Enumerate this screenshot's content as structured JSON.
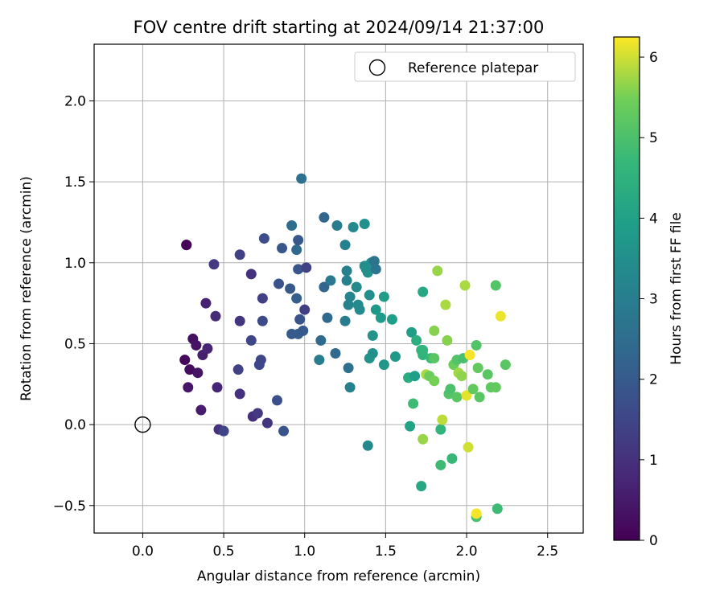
{
  "chart_data": {
    "type": "scatter",
    "title": "FOV centre drift starting at 2024/09/14 21:37:00",
    "xlabel": "Angular distance from reference (arcmin)",
    "ylabel": "Rotation from reference (arcmin)",
    "xlim": [
      -0.3,
      2.72
    ],
    "ylim": [
      -0.67,
      2.35
    ],
    "xticks": [
      0.0,
      0.5,
      1.0,
      1.5,
      2.0,
      2.5
    ],
    "yticks": [
      -0.5,
      0.0,
      0.5,
      1.0,
      1.5,
      2.0
    ],
    "xtick_labels": [
      "0.0",
      "0.5",
      "1.0",
      "1.5",
      "2.0",
      "2.5"
    ],
    "ytick_labels": [
      "−0.5",
      "0.0",
      "0.5",
      "1.0",
      "1.5",
      "2.0"
    ],
    "grid": true,
    "legend": {
      "position": "top-right",
      "entries": [
        "Reference platepar"
      ]
    },
    "reference_point": {
      "x": 0.0,
      "y": 0.0,
      "marker": "open-circle"
    },
    "colorbar": {
      "label": "Hours from first FF file",
      "min": 0,
      "max": 6.25,
      "ticks": [
        0,
        1,
        2,
        3,
        4,
        5,
        6
      ],
      "tick_labels": [
        "0",
        "1",
        "2",
        "3",
        "4",
        "5",
        "6"
      ],
      "colormap": "viridis"
    },
    "points": [
      {
        "x": 0.27,
        "y": 1.11,
        "c": 0.02
      },
      {
        "x": 0.27,
        "y": 1.11,
        "c": 0.05
      },
      {
        "x": 0.26,
        "y": 0.4,
        "c": 0.1
      },
      {
        "x": 0.29,
        "y": 0.34,
        "c": 0.2
      },
      {
        "x": 0.31,
        "y": 0.53,
        "c": 0.3
      },
      {
        "x": 0.33,
        "y": 0.49,
        "c": 0.35
      },
      {
        "x": 0.34,
        "y": 0.32,
        "c": 0.4
      },
      {
        "x": 0.28,
        "y": 0.23,
        "c": 0.45
      },
      {
        "x": 0.36,
        "y": 0.09,
        "c": 0.55
      },
      {
        "x": 0.37,
        "y": 0.43,
        "c": 0.6
      },
      {
        "x": 0.39,
        "y": 0.75,
        "c": 0.65
      },
      {
        "x": 0.4,
        "y": 0.47,
        "c": 0.7
      },
      {
        "x": 0.46,
        "y": 0.23,
        "c": 0.75
      },
      {
        "x": 0.45,
        "y": 0.67,
        "c": 0.85
      },
      {
        "x": 0.47,
        "y": -0.03,
        "c": 1.0
      },
      {
        "x": 0.44,
        "y": 0.99,
        "c": 1.2
      },
      {
        "x": 0.5,
        "y": -0.04,
        "c": 1.3
      },
      {
        "x": 0.5,
        "y": -0.04,
        "c": 1.5
      },
      {
        "x": 0.6,
        "y": 0.19,
        "c": 1.0
      },
      {
        "x": 0.6,
        "y": 0.64,
        "c": 1.1
      },
      {
        "x": 0.59,
        "y": 0.34,
        "c": 1.4
      },
      {
        "x": 0.6,
        "y": 1.05,
        "c": 1.35
      },
      {
        "x": 0.67,
        "y": 0.93,
        "c": 1.0
      },
      {
        "x": 0.68,
        "y": 0.05,
        "c": 0.95
      },
      {
        "x": 0.71,
        "y": 0.07,
        "c": 1.2
      },
      {
        "x": 0.67,
        "y": 0.52,
        "c": 1.5
      },
      {
        "x": 0.72,
        "y": 0.37,
        "c": 1.55
      },
      {
        "x": 0.73,
        "y": 0.4,
        "c": 1.5
      },
      {
        "x": 0.74,
        "y": 0.78,
        "c": 1.35
      },
      {
        "x": 0.74,
        "y": 0.64,
        "c": 1.6
      },
      {
        "x": 0.75,
        "y": 1.15,
        "c": 1.65
      },
      {
        "x": 0.77,
        "y": 0.01,
        "c": 1.1
      },
      {
        "x": 0.83,
        "y": 0.15,
        "c": 1.75
      },
      {
        "x": 0.84,
        "y": 0.87,
        "c": 1.8
      },
      {
        "x": 0.86,
        "y": 1.09,
        "c": 1.9
      },
      {
        "x": 0.87,
        "y": -0.04,
        "c": 1.85
      },
      {
        "x": 0.91,
        "y": 0.84,
        "c": 1.95
      },
      {
        "x": 0.92,
        "y": 0.56,
        "c": 2.0
      },
      {
        "x": 0.92,
        "y": 1.23,
        "c": 2.5
      },
      {
        "x": 0.95,
        "y": 1.08,
        "c": 2.35
      },
      {
        "x": 0.95,
        "y": 0.78,
        "c": 2.1
      },
      {
        "x": 0.96,
        "y": 0.56,
        "c": 2.05
      },
      {
        "x": 0.96,
        "y": 0.96,
        "c": 1.9
      },
      {
        "x": 0.96,
        "y": 1.14,
        "c": 1.95
      },
      {
        "x": 0.97,
        "y": 0.65,
        "c": 1.85
      },
      {
        "x": 0.98,
        "y": 1.52,
        "c": 2.6
      },
      {
        "x": 0.99,
        "y": 0.58,
        "c": 2.0
      },
      {
        "x": 1.0,
        "y": 0.71,
        "c": 1.3
      },
      {
        "x": 1.01,
        "y": 0.97,
        "c": 1.4
      },
      {
        "x": 1.09,
        "y": 0.4,
        "c": 2.9
      },
      {
        "x": 1.1,
        "y": 0.52,
        "c": 2.4
      },
      {
        "x": 1.12,
        "y": 1.28,
        "c": 2.3
      },
      {
        "x": 1.12,
        "y": 0.85,
        "c": 2.3
      },
      {
        "x": 1.14,
        "y": 0.66,
        "c": 2.35
      },
      {
        "x": 1.16,
        "y": 0.89,
        "c": 2.85
      },
      {
        "x": 1.19,
        "y": 0.44,
        "c": 2.4
      },
      {
        "x": 1.2,
        "y": 1.23,
        "c": 2.9
      },
      {
        "x": 1.25,
        "y": 1.11,
        "c": 3.1
      },
      {
        "x": 1.25,
        "y": 0.64,
        "c": 2.95
      },
      {
        "x": 1.26,
        "y": 0.95,
        "c": 3.05
      },
      {
        "x": 1.26,
        "y": 0.89,
        "c": 3.1
      },
      {
        "x": 1.27,
        "y": 0.74,
        "c": 3.15
      },
      {
        "x": 1.27,
        "y": 0.35,
        "c": 2.6
      },
      {
        "x": 1.28,
        "y": 0.79,
        "c": 3.2
      },
      {
        "x": 1.28,
        "y": 0.23,
        "c": 3.1
      },
      {
        "x": 1.3,
        "y": 1.22,
        "c": 3.3
      },
      {
        "x": 1.32,
        "y": 0.85,
        "c": 3.3
      },
      {
        "x": 1.33,
        "y": 0.74,
        "c": 3.35
      },
      {
        "x": 1.34,
        "y": 0.71,
        "c": 3.35
      },
      {
        "x": 1.37,
        "y": 1.24,
        "c": 3.55
      },
      {
        "x": 1.37,
        "y": 0.98,
        "c": 3.4
      },
      {
        "x": 1.38,
        "y": 0.96,
        "c": 3.45
      },
      {
        "x": 1.39,
        "y": 0.94,
        "c": 3.5
      },
      {
        "x": 1.39,
        "y": -0.13,
        "c": 3.3
      },
      {
        "x": 1.4,
        "y": 0.8,
        "c": 3.5
      },
      {
        "x": 1.4,
        "y": 0.41,
        "c": 3.6
      },
      {
        "x": 1.41,
        "y": 1.0,
        "c": 3.5
      },
      {
        "x": 1.42,
        "y": 0.55,
        "c": 3.6
      },
      {
        "x": 1.42,
        "y": 0.44,
        "c": 3.55
      },
      {
        "x": 1.43,
        "y": 1.01,
        "c": 2.7
      },
      {
        "x": 1.44,
        "y": 0.96,
        "c": 2.75
      },
      {
        "x": 1.44,
        "y": 0.71,
        "c": 3.7
      },
      {
        "x": 1.47,
        "y": 0.66,
        "c": 3.8
      },
      {
        "x": 1.49,
        "y": 0.79,
        "c": 3.85
      },
      {
        "x": 1.49,
        "y": 0.37,
        "c": 3.7
      },
      {
        "x": 1.54,
        "y": 0.65,
        "c": 3.9
      },
      {
        "x": 1.56,
        "y": 0.42,
        "c": 3.75
      },
      {
        "x": 1.64,
        "y": 0.29,
        "c": 4.3
      },
      {
        "x": 1.65,
        "y": -0.01,
        "c": 4.05
      },
      {
        "x": 1.66,
        "y": 0.57,
        "c": 3.95
      },
      {
        "x": 1.67,
        "y": 0.13,
        "c": 4.8
      },
      {
        "x": 1.68,
        "y": 0.3,
        "c": 3.9
      },
      {
        "x": 1.69,
        "y": 0.52,
        "c": 4.4
      },
      {
        "x": 1.72,
        "y": 0.46,
        "c": 4.6
      },
      {
        "x": 1.72,
        "y": -0.38,
        "c": 4.2
      },
      {
        "x": 1.73,
        "y": 0.82,
        "c": 4.2
      },
      {
        "x": 1.73,
        "y": 0.43,
        "c": 4.55
      },
      {
        "x": 1.73,
        "y": 0.46,
        "c": 4.6
      },
      {
        "x": 1.73,
        "y": -0.09,
        "c": 5.7
      },
      {
        "x": 1.75,
        "y": 0.31,
        "c": 5.8
      },
      {
        "x": 1.77,
        "y": 0.3,
        "c": 5.4
      },
      {
        "x": 1.78,
        "y": 0.41,
        "c": 4.75
      },
      {
        "x": 1.8,
        "y": 0.58,
        "c": 5.6
      },
      {
        "x": 1.8,
        "y": 0.41,
        "c": 5.2
      },
      {
        "x": 1.8,
        "y": 0.27,
        "c": 5.5
      },
      {
        "x": 1.82,
        "y": 0.95,
        "c": 5.7
      },
      {
        "x": 1.84,
        "y": -0.03,
        "c": 4.6
      },
      {
        "x": 1.84,
        "y": -0.25,
        "c": 4.8
      },
      {
        "x": 1.85,
        "y": 0.03,
        "c": 5.9
      },
      {
        "x": 1.87,
        "y": 0.74,
        "c": 5.8
      },
      {
        "x": 1.88,
        "y": 0.52,
        "c": 5.6
      },
      {
        "x": 1.89,
        "y": 0.19,
        "c": 5.1
      },
      {
        "x": 1.9,
        "y": 0.22,
        "c": 5.0
      },
      {
        "x": 1.91,
        "y": -0.21,
        "c": 4.7
      },
      {
        "x": 1.92,
        "y": 0.37,
        "c": 5.4
      },
      {
        "x": 1.94,
        "y": 0.17,
        "c": 5.2
      },
      {
        "x": 1.94,
        "y": 0.4,
        "c": 5.1
      },
      {
        "x": 1.95,
        "y": 0.32,
        "c": 5.75
      },
      {
        "x": 1.97,
        "y": 0.3,
        "c": 5.65
      },
      {
        "x": 1.98,
        "y": 0.41,
        "c": 4.95
      },
      {
        "x": 1.99,
        "y": 0.86,
        "c": 5.8
      },
      {
        "x": 2.0,
        "y": 0.18,
        "c": 6.1
      },
      {
        "x": 2.01,
        "y": -0.14,
        "c": 6.0
      },
      {
        "x": 2.02,
        "y": 0.43,
        "c": 6.2
      },
      {
        "x": 2.04,
        "y": 0.22,
        "c": 5.3
      },
      {
        "x": 2.06,
        "y": 0.49,
        "c": 5.1
      },
      {
        "x": 2.06,
        "y": -0.57,
        "c": 5.0
      },
      {
        "x": 2.06,
        "y": -0.55,
        "c": 6.2
      },
      {
        "x": 2.07,
        "y": 0.35,
        "c": 5.3
      },
      {
        "x": 2.08,
        "y": 0.17,
        "c": 5.2
      },
      {
        "x": 2.13,
        "y": 0.31,
        "c": 5.2
      },
      {
        "x": 2.15,
        "y": 0.23,
        "c": 5.25
      },
      {
        "x": 2.18,
        "y": 0.86,
        "c": 5.1
      },
      {
        "x": 2.18,
        "y": 0.23,
        "c": 5.3
      },
      {
        "x": 2.19,
        "y": -0.52,
        "c": 4.8
      },
      {
        "x": 2.21,
        "y": 0.67,
        "c": 6.15
      },
      {
        "x": 2.24,
        "y": 0.37,
        "c": 5.2
      }
    ]
  }
}
